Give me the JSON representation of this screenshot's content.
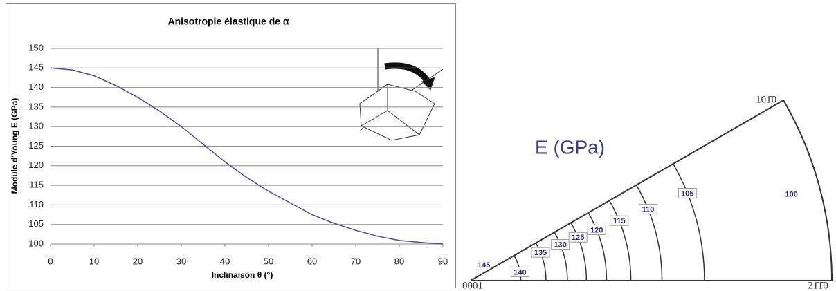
{
  "chart_data": [
    {
      "type": "line",
      "title": "Anisotropie élastique de α",
      "x_label": "Inclinaison θ (°)",
      "y_label": "Module d'Young E (GPa)",
      "x": [
        0,
        5,
        10,
        15,
        20,
        25,
        30,
        35,
        40,
        45,
        50,
        55,
        60,
        65,
        70,
        75,
        80,
        85,
        90
      ],
      "series": [
        {
          "name": "E",
          "color": "#4b4b8f",
          "values": [
            145,
            144.5,
            143,
            140.5,
            137.5,
            134,
            130,
            125.5,
            121,
            117,
            113.5,
            110.5,
            107.5,
            105.3,
            103.5,
            102,
            100.9,
            100.4,
            100
          ]
        }
      ],
      "xlim": [
        0,
        90
      ],
      "xticks": [
        0,
        10,
        20,
        30,
        40,
        50,
        60,
        70,
        80,
        90
      ],
      "ylim": [
        100,
        150
      ],
      "yticks": [
        100,
        105,
        110,
        115,
        120,
        125,
        130,
        135,
        140,
        145,
        150
      ],
      "grid": true
    },
    {
      "type": "sector",
      "title": "E (GPa)",
      "levels": [
        145,
        140,
        135,
        130,
        125,
        120,
        115,
        110,
        105,
        100
      ],
      "corner_labels": [
        "0001",
        "101̄0",
        "21̄1̄0"
      ],
      "color": "#333333"
    }
  ]
}
